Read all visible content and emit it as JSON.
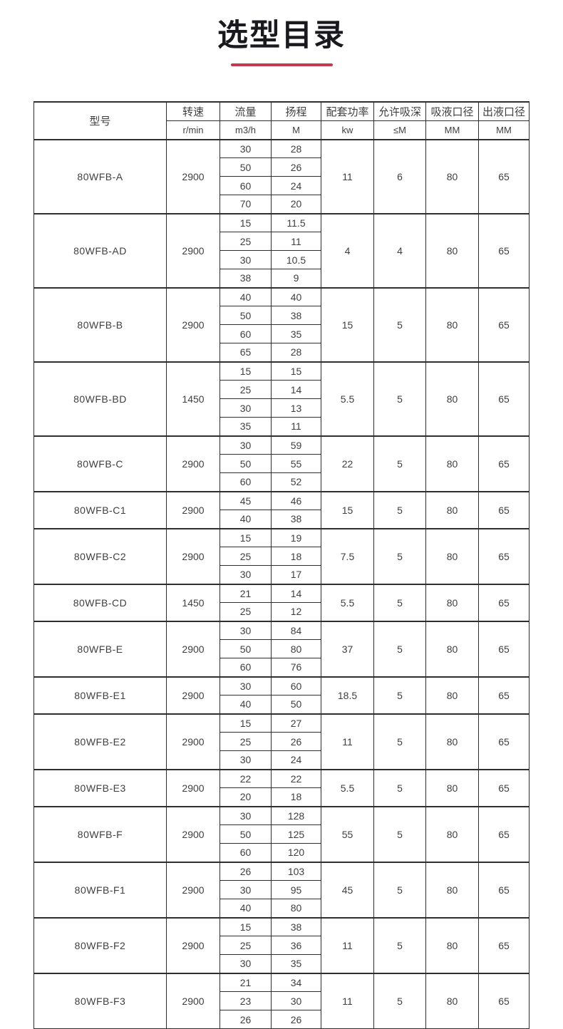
{
  "page": {
    "title": "选型目录",
    "accent_color": "#c23a52"
  },
  "table": {
    "model_header": "型号",
    "columns": [
      {
        "key": "speed",
        "label": "转速",
        "unit": "r/min"
      },
      {
        "key": "flow",
        "label": "流量",
        "unit": "m3/h"
      },
      {
        "key": "head",
        "label": "扬程",
        "unit": "M"
      },
      {
        "key": "power",
        "label": "配套功率",
        "unit": "kw"
      },
      {
        "key": "suction-depth",
        "label": "允许吸深",
        "unit": "≤M"
      },
      {
        "key": "inlet-diameter",
        "label": "吸液口径",
        "unit": "MM"
      },
      {
        "key": "outlet-diameter",
        "label": "出液口径",
        "unit": "MM"
      }
    ],
    "rows": [
      {
        "model": "80WFB-A",
        "speed": "2900",
        "power": "11",
        "suction_depth": "6",
        "inlet": "80",
        "outlet": "65",
        "points": [
          [
            "30",
            "28"
          ],
          [
            "50",
            "26"
          ],
          [
            "60",
            "24"
          ],
          [
            "70",
            "20"
          ]
        ]
      },
      {
        "model": "80WFB-AD",
        "speed": "2900",
        "power": "4",
        "suction_depth": "4",
        "inlet": "80",
        "outlet": "65",
        "points": [
          [
            "15",
            "11.5"
          ],
          [
            "25",
            "11"
          ],
          [
            "30",
            "10.5"
          ],
          [
            "38",
            "9"
          ]
        ]
      },
      {
        "model": "80WFB-B",
        "speed": "2900",
        "power": "15",
        "suction_depth": "5",
        "inlet": "80",
        "outlet": "65",
        "points": [
          [
            "40",
            "40"
          ],
          [
            "50",
            "38"
          ],
          [
            "60",
            "35"
          ],
          [
            "65",
            "28"
          ]
        ]
      },
      {
        "model": "80WFB-BD",
        "speed": "1450",
        "power": "5.5",
        "suction_depth": "5",
        "inlet": "80",
        "outlet": "65",
        "points": [
          [
            "15",
            "15"
          ],
          [
            "25",
            "14"
          ],
          [
            "30",
            "13"
          ],
          [
            "35",
            "11"
          ]
        ]
      },
      {
        "model": "80WFB-C",
        "speed": "2900",
        "power": "22",
        "suction_depth": "5",
        "inlet": "80",
        "outlet": "65",
        "points": [
          [
            "30",
            "59"
          ],
          [
            "50",
            "55"
          ],
          [
            "60",
            "52"
          ]
        ]
      },
      {
        "model": "80WFB-C1",
        "speed": "2900",
        "power": "15",
        "suction_depth": "5",
        "inlet": "80",
        "outlet": "65",
        "points": [
          [
            "45",
            "46"
          ],
          [
            "40",
            "38"
          ]
        ]
      },
      {
        "model": "80WFB-C2",
        "speed": "2900",
        "power": "7.5",
        "suction_depth": "5",
        "inlet": "80",
        "outlet": "65",
        "points": [
          [
            "15",
            "19"
          ],
          [
            "25",
            "18"
          ],
          [
            "30",
            "17"
          ]
        ]
      },
      {
        "model": "80WFB-CD",
        "speed": "1450",
        "power": "5.5",
        "suction_depth": "5",
        "inlet": "80",
        "outlet": "65",
        "points": [
          [
            "21",
            "14"
          ],
          [
            "25",
            "12"
          ]
        ]
      },
      {
        "model": "80WFB-E",
        "speed": "2900",
        "power": "37",
        "suction_depth": "5",
        "inlet": "80",
        "outlet": "65",
        "points": [
          [
            "30",
            "84"
          ],
          [
            "50",
            "80"
          ],
          [
            "60",
            "76"
          ]
        ]
      },
      {
        "model": "80WFB-E1",
        "speed": "2900",
        "power": "18.5",
        "suction_depth": "5",
        "inlet": "80",
        "outlet": "65",
        "points": [
          [
            "30",
            "60"
          ],
          [
            "40",
            "50"
          ]
        ]
      },
      {
        "model": "80WFB-E2",
        "speed": "2900",
        "power": "11",
        "suction_depth": "5",
        "inlet": "80",
        "outlet": "65",
        "points": [
          [
            "15",
            "27"
          ],
          [
            "25",
            "26"
          ],
          [
            "30",
            "24"
          ]
        ]
      },
      {
        "model": "80WFB-E3",
        "speed": "2900",
        "power": "5.5",
        "suction_depth": "5",
        "inlet": "80",
        "outlet": "65",
        "points": [
          [
            "22",
            "22"
          ],
          [
            "20",
            "18"
          ]
        ]
      },
      {
        "model": "80WFB-F",
        "speed": "2900",
        "power": "55",
        "suction_depth": "5",
        "inlet": "80",
        "outlet": "65",
        "points": [
          [
            "30",
            "128"
          ],
          [
            "50",
            "125"
          ],
          [
            "60",
            "120"
          ]
        ]
      },
      {
        "model": "80WFB-F1",
        "speed": "2900",
        "power": "45",
        "suction_depth": "5",
        "inlet": "80",
        "outlet": "65",
        "points": [
          [
            "26",
            "103"
          ],
          [
            "30",
            "95"
          ],
          [
            "40",
            "80"
          ]
        ]
      },
      {
        "model": "80WFB-F2",
        "speed": "2900",
        "power": "11",
        "suction_depth": "5",
        "inlet": "80",
        "outlet": "65",
        "points": [
          [
            "15",
            "38"
          ],
          [
            "25",
            "36"
          ],
          [
            "30",
            "35"
          ]
        ]
      },
      {
        "model": "80WFB-F3",
        "speed": "2900",
        "power": "11",
        "suction_depth": "5",
        "inlet": "80",
        "outlet": "65",
        "points": [
          [
            "21",
            "34"
          ],
          [
            "23",
            "30"
          ],
          [
            "26",
            "26"
          ]
        ]
      }
    ]
  }
}
